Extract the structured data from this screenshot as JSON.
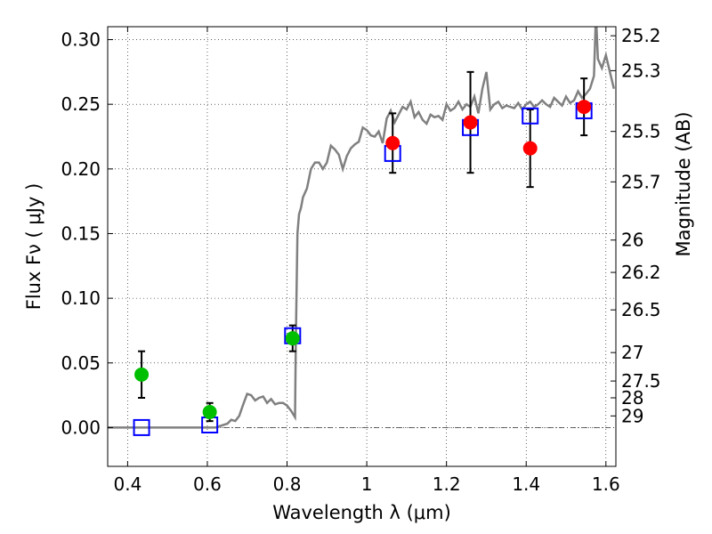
{
  "chart_data": {
    "type": "scatter",
    "xlabel": "Wavelength  λ (μm)",
    "ylabel": "Flux  Fν  ( μJy )",
    "y2label": "Magnitude (AB)",
    "xlim": [
      0.35,
      1.625
    ],
    "ylim": [
      -0.03,
      0.31
    ],
    "grid": true,
    "x_ticks": [
      0.4,
      0.6,
      0.8,
      1.0,
      1.2,
      1.4,
      1.6
    ],
    "x_tick_labels": [
      "0.4",
      "0.6",
      "0.8",
      "1",
      "1.2",
      "1.4",
      "1.6"
    ],
    "y_ticks": [
      0.0,
      0.05,
      0.1,
      0.15,
      0.2,
      0.25,
      0.3
    ],
    "y_tick_labels": [
      "0.00",
      "0.05",
      "0.10",
      "0.15",
      "0.20",
      "0.25",
      "0.30"
    ],
    "mag_ticks": [
      {
        "label": "25.2",
        "flux": 0.303
      },
      {
        "label": "25.3",
        "flux": 0.276
      },
      {
        "label": "25.5",
        "flux": 0.229
      },
      {
        "label": "25.7",
        "flux": 0.19
      },
      {
        "label": "26",
        "flux": 0.145
      },
      {
        "label": "26.2",
        "flux": 0.12
      },
      {
        "label": "26.5",
        "flux": 0.091
      },
      {
        "label": "27",
        "flux": 0.058
      },
      {
        "label": "27.5",
        "flux": 0.036
      },
      {
        "label": "28",
        "flux": 0.023
      },
      {
        "label": "29",
        "flux": 0.009
      }
    ],
    "series": [
      {
        "marker": "circle",
        "color": "#00bf00",
        "points": [
          {
            "x": 0.435,
            "y": 0.041,
            "err": 0.018
          },
          {
            "x": 0.606,
            "y": 0.012,
            "err": 0.007
          },
          {
            "x": 0.814,
            "y": 0.069,
            "err": 0.01
          }
        ]
      },
      {
        "marker": "circle",
        "color": "#ff0000",
        "points": [
          {
            "x": 1.065,
            "y": 0.22,
            "err": 0.023
          },
          {
            "x": 1.26,
            "y": 0.236,
            "err": 0.039
          },
          {
            "x": 1.41,
            "y": 0.216,
            "err": 0.03
          },
          {
            "x": 1.545,
            "y": 0.248,
            "err": 0.022
          }
        ]
      },
      {
        "marker": "square-open",
        "color": "#0000ff",
        "points": [
          {
            "x": 0.435,
            "y": 0.0
          },
          {
            "x": 0.606,
            "y": 0.002
          },
          {
            "x": 0.814,
            "y": 0.071
          },
          {
            "x": 1.065,
            "y": 0.212
          },
          {
            "x": 1.26,
            "y": 0.232
          },
          {
            "x": 1.41,
            "y": 0.241
          },
          {
            "x": 1.545,
            "y": 0.245
          }
        ]
      },
      {
        "marker": "line",
        "color": "#808080",
        "x": [
          0.35,
          0.62,
          0.64,
          0.65,
          0.66,
          0.67,
          0.68,
          0.69,
          0.7,
          0.71,
          0.72,
          0.73,
          0.74,
          0.75,
          0.76,
          0.77,
          0.78,
          0.79,
          0.8,
          0.81,
          0.82,
          0.822,
          0.826,
          0.83,
          0.835,
          0.84,
          0.85,
          0.86,
          0.87,
          0.88,
          0.89,
          0.9,
          0.91,
          0.92,
          0.93,
          0.94,
          0.95,
          0.96,
          0.97,
          0.98,
          0.99,
          1.0,
          1.01,
          1.02,
          1.03,
          1.04,
          1.05,
          1.06,
          1.07,
          1.08,
          1.09,
          1.1,
          1.11,
          1.12,
          1.13,
          1.14,
          1.15,
          1.16,
          1.17,
          1.18,
          1.19,
          1.2,
          1.21,
          1.22,
          1.23,
          1.24,
          1.25,
          1.26,
          1.27,
          1.28,
          1.29,
          1.3,
          1.31,
          1.32,
          1.33,
          1.34,
          1.35,
          1.36,
          1.37,
          1.38,
          1.39,
          1.4,
          1.41,
          1.42,
          1.43,
          1.44,
          1.45,
          1.46,
          1.47,
          1.48,
          1.49,
          1.5,
          1.51,
          1.52,
          1.53,
          1.54,
          1.55,
          1.56,
          1.57,
          1.575,
          1.58,
          1.59,
          1.6,
          1.61,
          1.62
        ],
        "y": [
          0.0,
          0.0,
          0.002,
          0.003,
          0.006,
          0.005,
          0.009,
          0.018,
          0.026,
          0.025,
          0.021,
          0.023,
          0.024,
          0.019,
          0.022,
          0.018,
          0.019,
          0.019,
          0.017,
          0.013,
          0.008,
          0.068,
          0.15,
          0.165,
          0.17,
          0.178,
          0.185,
          0.2,
          0.205,
          0.205,
          0.2,
          0.205,
          0.218,
          0.215,
          0.211,
          0.2,
          0.21,
          0.216,
          0.219,
          0.221,
          0.232,
          0.23,
          0.226,
          0.225,
          0.229,
          0.22,
          0.239,
          0.245,
          0.236,
          0.242,
          0.248,
          0.246,
          0.252,
          0.24,
          0.244,
          0.238,
          0.235,
          0.242,
          0.24,
          0.241,
          0.238,
          0.25,
          0.245,
          0.247,
          0.252,
          0.246,
          0.25,
          0.248,
          0.256,
          0.243,
          0.262,
          0.275,
          0.246,
          0.25,
          0.252,
          0.247,
          0.249,
          0.248,
          0.247,
          0.251,
          0.246,
          0.25,
          0.252,
          0.248,
          0.25,
          0.253,
          0.25,
          0.248,
          0.255,
          0.252,
          0.249,
          0.256,
          0.251,
          0.253,
          0.26,
          0.255,
          0.258,
          0.262,
          0.272,
          0.32,
          0.285,
          0.278,
          0.288,
          0.275,
          0.262
        ]
      }
    ]
  }
}
